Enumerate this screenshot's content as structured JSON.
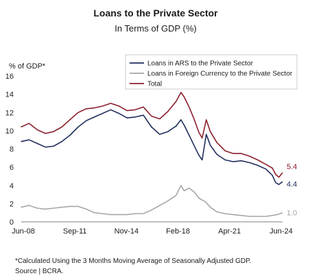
{
  "chart_data": {
    "type": "line",
    "title": "Loans to the Private Sector",
    "subtitle": "In Terms of GDP (%)",
    "ylabel": "% of GDP*",
    "xlabel": "",
    "ylim": [
      0,
      16
    ],
    "yticks": [
      "0",
      "2",
      "4",
      "6",
      "8",
      "10",
      "12",
      "14",
      "16"
    ],
    "xticks": [
      "Jun-08",
      "Sep-11",
      "Nov-14",
      "Feb-18",
      "Apr-21",
      "Jun-24"
    ],
    "xlim": [
      2008.42,
      2024.42
    ],
    "grid": false,
    "legend_position": "top-right",
    "series": [
      {
        "name": "Loans in ARS to the Private Sector",
        "color": "#1f2d5c",
        "end_label": "4.4",
        "points": [
          [
            2008.4,
            8.8
          ],
          [
            2008.9,
            9.0
          ],
          [
            2009.4,
            8.6
          ],
          [
            2009.9,
            8.2
          ],
          [
            2010.4,
            8.3
          ],
          [
            2010.9,
            8.8
          ],
          [
            2011.4,
            9.5
          ],
          [
            2011.9,
            10.4
          ],
          [
            2012.4,
            11.1
          ],
          [
            2012.9,
            11.5
          ],
          [
            2013.4,
            11.9
          ],
          [
            2013.9,
            12.3
          ],
          [
            2014.4,
            11.9
          ],
          [
            2014.9,
            11.4
          ],
          [
            2015.4,
            11.5
          ],
          [
            2015.9,
            11.7
          ],
          [
            2016.4,
            10.4
          ],
          [
            2016.9,
            9.6
          ],
          [
            2017.4,
            9.9
          ],
          [
            2017.9,
            10.5
          ],
          [
            2018.2,
            11.2
          ],
          [
            2018.4,
            10.6
          ],
          [
            2018.7,
            9.5
          ],
          [
            2019.0,
            8.4
          ],
          [
            2019.3,
            7.3
          ],
          [
            2019.5,
            6.8
          ],
          [
            2019.75,
            9.6
          ],
          [
            2020.0,
            8.4
          ],
          [
            2020.4,
            7.4
          ],
          [
            2020.9,
            6.8
          ],
          [
            2021.4,
            6.6
          ],
          [
            2021.9,
            6.7
          ],
          [
            2022.4,
            6.5
          ],
          [
            2022.9,
            6.2
          ],
          [
            2023.4,
            5.8
          ],
          [
            2023.8,
            5.1
          ],
          [
            2024.0,
            4.3
          ],
          [
            2024.2,
            4.1
          ],
          [
            2024.42,
            4.4
          ]
        ]
      },
      {
        "name": "Loans in Foreign Currency to the Private Sector",
        "color": "#a6a6a6",
        "end_label": "1.0",
        "points": [
          [
            2008.4,
            1.6
          ],
          [
            2008.9,
            1.8
          ],
          [
            2009.4,
            1.5
          ],
          [
            2009.9,
            1.4
          ],
          [
            2010.4,
            1.5
          ],
          [
            2010.9,
            1.6
          ],
          [
            2011.4,
            1.7
          ],
          [
            2011.9,
            1.7
          ],
          [
            2012.4,
            1.4
          ],
          [
            2012.9,
            1.0
          ],
          [
            2013.4,
            0.9
          ],
          [
            2013.9,
            0.8
          ],
          [
            2014.4,
            0.8
          ],
          [
            2014.9,
            0.8
          ],
          [
            2015.4,
            0.9
          ],
          [
            2015.9,
            0.9
          ],
          [
            2016.4,
            1.3
          ],
          [
            2016.9,
            1.8
          ],
          [
            2017.4,
            2.3
          ],
          [
            2017.9,
            2.9
          ],
          [
            2018.2,
            4.0
          ],
          [
            2018.4,
            3.4
          ],
          [
            2018.7,
            3.7
          ],
          [
            2019.0,
            3.3
          ],
          [
            2019.3,
            2.6
          ],
          [
            2019.7,
            2.2
          ],
          [
            2020.0,
            1.6
          ],
          [
            2020.4,
            1.1
          ],
          [
            2020.9,
            0.9
          ],
          [
            2021.4,
            0.8
          ],
          [
            2021.9,
            0.7
          ],
          [
            2022.4,
            0.6
          ],
          [
            2022.9,
            0.6
          ],
          [
            2023.4,
            0.6
          ],
          [
            2023.8,
            0.7
          ],
          [
            2024.1,
            0.8
          ],
          [
            2024.42,
            1.0
          ]
        ]
      },
      {
        "name": "Total",
        "color": "#8b1d2c",
        "end_label": "5.4",
        "points": [
          [
            2008.4,
            10.4
          ],
          [
            2008.9,
            10.8
          ],
          [
            2009.4,
            10.1
          ],
          [
            2009.9,
            9.7
          ],
          [
            2010.4,
            9.9
          ],
          [
            2010.9,
            10.4
          ],
          [
            2011.4,
            11.2
          ],
          [
            2011.9,
            12.0
          ],
          [
            2012.4,
            12.4
          ],
          [
            2012.9,
            12.5
          ],
          [
            2013.4,
            12.7
          ],
          [
            2013.9,
            13.0
          ],
          [
            2014.4,
            12.7
          ],
          [
            2014.9,
            12.2
          ],
          [
            2015.4,
            12.3
          ],
          [
            2015.9,
            12.6
          ],
          [
            2016.4,
            11.6
          ],
          [
            2016.9,
            11.3
          ],
          [
            2017.4,
            12.1
          ],
          [
            2017.9,
            13.2
          ],
          [
            2018.2,
            14.2
          ],
          [
            2018.4,
            13.7
          ],
          [
            2018.7,
            12.6
          ],
          [
            2019.0,
            11.3
          ],
          [
            2019.3,
            9.8
          ],
          [
            2019.5,
            9.2
          ],
          [
            2019.75,
            11.2
          ],
          [
            2020.0,
            9.9
          ],
          [
            2020.4,
            8.7
          ],
          [
            2020.9,
            7.8
          ],
          [
            2021.4,
            7.5
          ],
          [
            2021.9,
            7.5
          ],
          [
            2022.4,
            7.2
          ],
          [
            2022.9,
            6.8
          ],
          [
            2023.4,
            6.3
          ],
          [
            2023.8,
            5.9
          ],
          [
            2024.0,
            5.2
          ],
          [
            2024.2,
            4.9
          ],
          [
            2024.42,
            5.4
          ]
        ]
      }
    ],
    "footnote": "*Calculated Using the 3 Months Moving Average of Seasonally Adjusted GDP.",
    "source": "Source | BCRA."
  }
}
